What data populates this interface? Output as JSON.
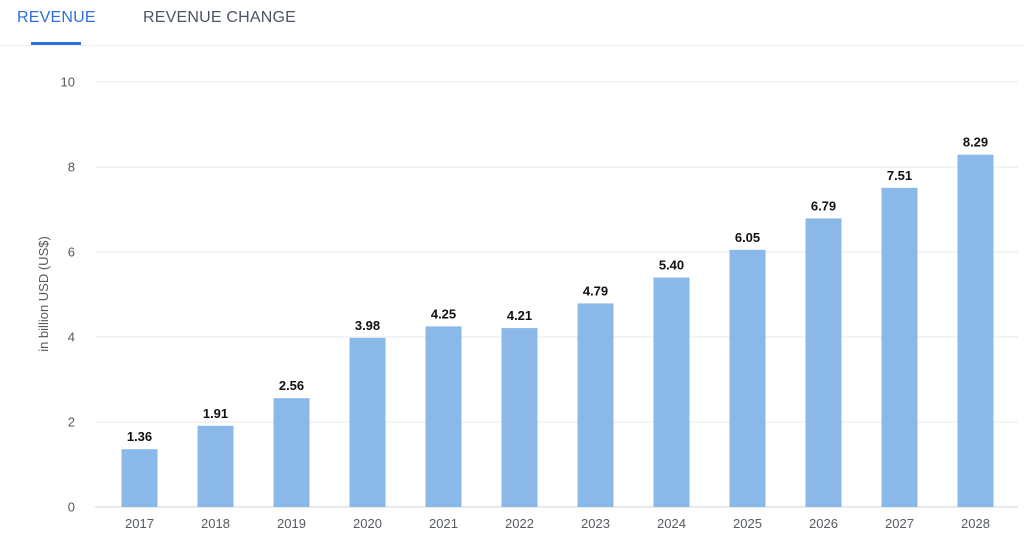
{
  "tabs": [
    {
      "label": "REVENUE",
      "active": true
    },
    {
      "label": "REVENUE CHANGE",
      "active": false
    }
  ],
  "colors": {
    "accent": "#2f6fd6",
    "bar": "#8ab8e8",
    "grid": "#e6e8eb"
  },
  "chart_data": {
    "type": "bar",
    "categories": [
      "2017",
      "2018",
      "2019",
      "2020",
      "2021",
      "2022",
      "2023",
      "2024",
      "2025",
      "2026",
      "2027",
      "2028"
    ],
    "values": [
      1.36,
      1.91,
      2.56,
      3.98,
      4.25,
      4.21,
      4.79,
      5.4,
      6.05,
      6.79,
      7.51,
      8.29
    ],
    "value_labels": [
      "1.36",
      "1.91",
      "2.56",
      "3.98",
      "4.25",
      "4.21",
      "4.79",
      "5.40",
      "6.05",
      "6.79",
      "7.51",
      "8.29"
    ],
    "title": "",
    "xlabel": "",
    "ylabel": "in billion USD (US$)",
    "ylim": [
      0,
      10
    ],
    "yticks": [
      0,
      2,
      4,
      6,
      8,
      10
    ],
    "grid": true,
    "legend": "none"
  }
}
